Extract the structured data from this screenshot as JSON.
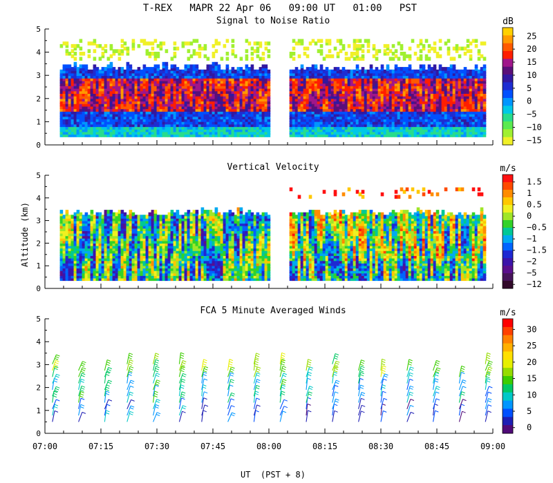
{
  "header": {
    "title": "T-REX   MAPR 22 Apr 06   09:00 UT   01:00   PST"
  },
  "x_axis": {
    "label": "UT  (PST + 8)",
    "ticks": [
      "07:00",
      "07:15",
      "07:30",
      "07:45",
      "08:00",
      "08:15",
      "08:30",
      "08:45",
      "09:00"
    ],
    "range_minutes": [
      0,
      120
    ],
    "data_gap_minutes": [
      60,
      65
    ]
  },
  "y_axis_label": "Altitude (km)",
  "chart_data": [
    {
      "type": "heatmap",
      "title": "Signal to Noise Ratio",
      "ylabel": "Altitude (km)",
      "ylim": [
        0,
        5
      ],
      "yticks": [
        "0",
        "1",
        "2",
        "3",
        "4",
        "5"
      ],
      "colorbar": {
        "unit": "dB",
        "labels": [
          "25",
          "20",
          "15",
          "10",
          "5",
          "0",
          "−5",
          "−10",
          "−15"
        ],
        "colors": [
          "#ffd000",
          "#ff9a00",
          "#ff5a00",
          "#ff1e00",
          "#a0168a",
          "#5a0f78",
          "#3218a0",
          "#1e2dd2",
          "#0050ff",
          "#0096ff",
          "#00c8e6",
          "#28dc8c",
          "#5aea50",
          "#a0f030",
          "#f0f028"
        ]
      }
    },
    {
      "type": "heatmap",
      "title": "Vertical Velocity",
      "ylabel": "Altitude (km)",
      "ylim": [
        0,
        5
      ],
      "yticks": [
        "0",
        "1",
        "2",
        "3",
        "4",
        "5"
      ],
      "colorbar": {
        "unit": "m/s",
        "labels": [
          "1.5",
          "1",
          "0.5",
          "0",
          "−0.5",
          "−1",
          "−1.5",
          "−2",
          "−5",
          "−12"
        ],
        "colors": [
          "#ff1010",
          "#ff4a00",
          "#ff8c00",
          "#ffc800",
          "#f0f020",
          "#a0e628",
          "#32d228",
          "#00c896",
          "#00aaf0",
          "#0064ff",
          "#1e28d2",
          "#3c14aa",
          "#5a0f8c",
          "#46145a",
          "#320a2a"
        ]
      }
    },
    {
      "type": "barbs",
      "title": "FCA 5 Minute Averaged Winds",
      "ylabel": "Altitude (km)",
      "ylim": [
        0,
        5
      ],
      "yticks": [
        "0",
        "1",
        "2",
        "3",
        "4",
        "5"
      ],
      "colorbar": {
        "unit": "m/s",
        "labels": [
          "30",
          "25",
          "20",
          "15",
          "10",
          "5",
          "0"
        ],
        "colors": [
          "#ff0000",
          "#ff4000",
          "#ff8000",
          "#ffb000",
          "#ffe000",
          "#e6f000",
          "#96dc00",
          "#3ccd00",
          "#00c864",
          "#00c8c8",
          "#0096ff",
          "#0050ff",
          "#1e1eb4",
          "#500a78"
        ]
      },
      "profile_times_minutes": [
        2,
        9,
        16,
        22,
        29,
        36,
        42,
        49,
        56,
        63,
        70,
        77,
        84,
        90,
        97,
        104,
        111,
        118
      ]
    }
  ]
}
